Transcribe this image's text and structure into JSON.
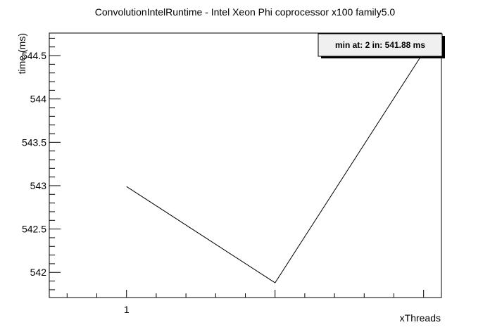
{
  "chart_data": {
    "type": "line",
    "title": "ConvolutionIntelRuntime - Intel Xeon Phi coprocessor x100 family5.0",
    "xlabel": "xThreads",
    "ylabel": "time (ms)",
    "x": [
      1,
      2,
      3
    ],
    "series": [
      {
        "values": [
          542.99,
          541.88,
          544.54
        ]
      }
    ],
    "xlim": [
      0.48,
      3.12
    ],
    "ylim": [
      541.71,
      544.76
    ],
    "x_tick_labels": [
      {
        "value": 1,
        "label": "1"
      }
    ],
    "y_tick_labels": [
      {
        "value": 542,
        "label": "542"
      },
      {
        "value": 542.5,
        "label": "542.5"
      },
      {
        "value": 543,
        "label": "543"
      },
      {
        "value": 543.5,
        "label": "543.5"
      },
      {
        "value": 544,
        "label": "544"
      },
      {
        "value": 544.5,
        "label": "544.5"
      }
    ],
    "grid": false,
    "legend": {
      "text": "min at: 2 in: 541.88 ms",
      "placement": "top-right"
    },
    "colors": {
      "line": "#000000",
      "frame": "#000000",
      "legend_fill": "#f0f0f0",
      "legend_shadow": "#000000"
    }
  }
}
